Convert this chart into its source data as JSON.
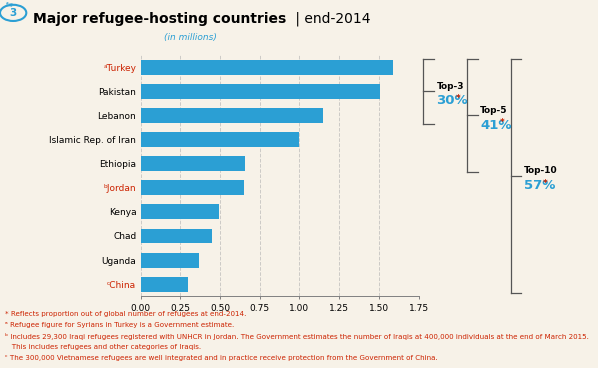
{
  "title_bold": "Major refugee-hosting countries",
  "title_normal": " | end-2014",
  "fig_label": "3",
  "xlabel": "(in millions)",
  "countries": [
    "ᶜChina",
    "Uganda",
    "Chad",
    "Kenya",
    "ᵇJordan",
    "Ethiopia",
    "Islamic Rep. of Iran",
    "Lebanon",
    "Pakistan",
    "ᵃTurkey"
  ],
  "values": [
    0.301,
    0.37,
    0.452,
    0.491,
    0.654,
    0.659,
    1.0,
    1.15,
    1.505,
    1.59
  ],
  "bar_color": "#2B9FD4",
  "xlim": [
    0,
    1.75
  ],
  "xticks": [
    0.0,
    0.25,
    0.5,
    0.75,
    1.0,
    1.25,
    1.5,
    1.75
  ],
  "xtick_labels": [
    "0.00",
    "0.25",
    "0.50",
    "0.75",
    "1.00",
    "1.25",
    "1.50",
    "1.75"
  ],
  "background_color": "#F7F2E8",
  "grid_color": "#B0B0B0",
  "top3_label": "Top-3",
  "top3_pct": "30%",
  "top5_label": "Top-5",
  "top5_pct": "41%",
  "top10_label": "Top-10",
  "top10_pct": "57%",
  "footnote1": "* Reflects proportion out of global number of refugees at end-2014.",
  "footnote2": "ᵃ Refugee figure for Syrians in Turkey is a Government estimate.",
  "footnote3a": "ᵇ Includes 29,300 Iraqi refugees registered with UNHCR in Jordan. The Government estimates the number of Iraqis at 400,000 individuals at the end of March 2015.",
  "footnote3b": "   This includes refugees and other categories of Iraqis.",
  "footnote4": "ᶜ The 300,000 Vietnamese refugees are well integrated and in practice receive protection from the Government of China."
}
